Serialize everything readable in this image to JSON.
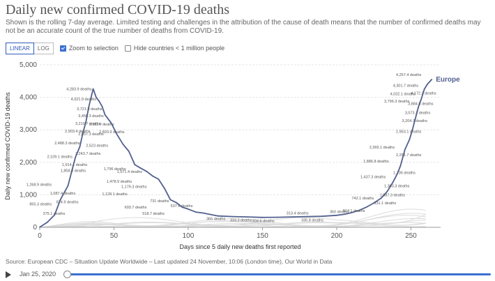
{
  "title": "Daily new confirmed COVID-19 deaths",
  "subtitle": "Shown is the rolling 7-day average. Limited testing and challenges in the attribution of the cause of death means that the number of confirmed deaths may not be an accurate count of the true number of deaths from COVID-19.",
  "controls": {
    "linear": "LINEAR",
    "log": "LOG",
    "zoom": "Zoom to selection",
    "hide": "Hide countries < 1 million people"
  },
  "source": "Source: European CDC – Situation Update Worldwide – Last updated 24 November, 10:06 (London time), Our World in Data",
  "timeline": {
    "date": "Jan 25, 2020"
  },
  "colors": {
    "series": "#52608f",
    "accent": "#3b6fd1",
    "background_lines": "#dcdcdc",
    "grid": "#e6e6e6"
  },
  "chart_data": {
    "type": "line",
    "xlabel": "Days since 5 daily new deaths first reported",
    "ylabel": "Daily new confirmed COVID-19 deaths",
    "xlim": [
      0,
      270
    ],
    "ylim": [
      0,
      5000
    ],
    "xticks": [
      0,
      50,
      100,
      150,
      200,
      250
    ],
    "yticks": [
      0,
      1000,
      2000,
      3000,
      4000,
      5000
    ],
    "ytick_labels": [
      "0",
      "1,000",
      "2,000",
      "3,000",
      "4,000",
      "5,000"
    ],
    "grid": true,
    "series": [
      {
        "name": "Europe",
        "x": [
          0,
          5,
          10,
          14,
          19,
          24,
          27,
          29,
          31,
          33,
          35,
          36,
          38,
          40,
          42,
          44,
          48,
          52,
          56,
          60,
          64,
          68,
          72,
          76,
          80,
          84,
          88,
          92,
          96,
          100,
          105,
          110,
          120,
          130,
          140,
          150,
          160,
          170,
          180,
          190,
          200,
          205,
          210,
          215,
          220,
          225,
          230,
          234,
          238,
          241,
          243,
          246,
          249,
          251,
          253,
          255,
          257,
          259,
          261,
          264
        ],
        "y": [
          5,
          150,
          380,
          860,
          1280,
          2150,
          2480,
          2900,
          3220,
          3700,
          4080,
          4260,
          4000,
          3880,
          3720,
          3460,
          3220,
          2860,
          2560,
          2340,
          1930,
          1820,
          1720,
          1580,
          1480,
          1200,
          850,
          760,
          620,
          560,
          470,
          440,
          350,
          330,
          320,
          305,
          310,
          320,
          330,
          340,
          370,
          400,
          450,
          520,
          620,
          750,
          900,
          1100,
          1400,
          1660,
          1900,
          2400,
          2700,
          3000,
          3350,
          3700,
          3950,
          4250,
          4400,
          4550
        ]
      }
    ],
    "annotations": [
      {
        "text": "4,283.9 deaths",
        "x": 36,
        "y": 4260
      },
      {
        "text": "4,021.9 deaths",
        "x": 39,
        "y": 3950
      },
      {
        "text": "3,721.9 deaths",
        "x": 43,
        "y": 3650
      },
      {
        "text": "3,456.3 deaths",
        "x": 44,
        "y": 3430
      },
      {
        "text": "3,210.7 deaths",
        "x": 42,
        "y": 3200
      },
      {
        "text": "3,111.0 deaths",
        "x": 51,
        "y": 3180
      },
      {
        "text": "2,903.4 deaths",
        "x": 35,
        "y": 2960
      },
      {
        "text": "2,857.3 deaths",
        "x": 44,
        "y": 2880
      },
      {
        "text": "2,820.9 deaths",
        "x": 58,
        "y": 2940
      },
      {
        "text": "2,488.3 deaths",
        "x": 28,
        "y": 2600
      },
      {
        "text": "2,523 deaths",
        "x": 47,
        "y": 2520
      },
      {
        "text": "2,243.7 deaths",
        "x": 42,
        "y": 2270
      },
      {
        "text": "2,109.1 deaths",
        "x": 23,
        "y": 2180
      },
      {
        "text": "1,914.1 deaths",
        "x": 33,
        "y": 1930
      },
      {
        "text": "1,858.8 deaths",
        "x": 32,
        "y": 1750
      },
      {
        "text": "1,796 deaths",
        "x": 59,
        "y": 1800
      },
      {
        "text": "1,571.4 deaths",
        "x": 70,
        "y": 1720
      },
      {
        "text": "1,478.9 deaths",
        "x": 63,
        "y": 1420
      },
      {
        "text": "1,268.9 deaths",
        "x": 9,
        "y": 1320
      },
      {
        "text": "1,179.3 deaths",
        "x": 73,
        "y": 1260
      },
      {
        "text": "1,128.1 deaths",
        "x": 60,
        "y": 1030
      },
      {
        "text": "1,087.4 deaths",
        "x": 25,
        "y": 1050
      },
      {
        "text": "874.9 deaths",
        "x": 27,
        "y": 780
      },
      {
        "text": "855.3 deaths",
        "x": 9,
        "y": 720
      },
      {
        "text": "731 deaths",
        "x": 88,
        "y": 820
      },
      {
        "text": "693.7 deaths",
        "x": 73,
        "y": 620
      },
      {
        "text": "537.6 deaths",
        "x": 104,
        "y": 660
      },
      {
        "text": "518.7 deaths",
        "x": 85,
        "y": 430
      },
      {
        "text": "375.1 deaths",
        "x": 18,
        "y": 430
      },
      {
        "text": "365 deaths",
        "x": 126,
        "y": 270
      },
      {
        "text": "333.3 deaths",
        "x": 144,
        "y": 220
      },
      {
        "text": "304.6 deaths",
        "x": 159,
        "y": 200
      },
      {
        "text": "313.4 deaths",
        "x": 182,
        "y": 440
      },
      {
        "text": "335.8 deaths",
        "x": 192,
        "y": 230
      },
      {
        "text": "360 deaths",
        "x": 209,
        "y": 480
      },
      {
        "text": "614.1 deaths",
        "x": 220,
        "y": 510
      },
      {
        "text": "742.1 deaths",
        "x": 226,
        "y": 900
      },
      {
        "text": "931.1 deaths",
        "x": 241,
        "y": 750
      },
      {
        "text": "1,087.3 deaths",
        "x": 247,
        "y": 1000
      },
      {
        "text": "1,363.3 deaths",
        "x": 250,
        "y": 1280
      },
      {
        "text": "1,437.3 deaths",
        "x": 234,
        "y": 1560
      },
      {
        "text": "1,736 deaths",
        "x": 254,
        "y": 1680
      },
      {
        "text": "1,886.8 deaths",
        "x": 236,
        "y": 2040
      },
      {
        "text": "2,251.7 deaths",
        "x": 258,
        "y": 2230
      },
      {
        "text": "2,369.1 deaths",
        "x": 240,
        "y": 2470
      },
      {
        "text": "2,953.1 deaths",
        "x": 258,
        "y": 2950
      },
      {
        "text": "3,204.7 deaths",
        "x": 262,
        "y": 3280
      },
      {
        "text": "3,573.1 deaths",
        "x": 264,
        "y": 3530
      },
      {
        "text": "3,796.3 deaths",
        "x": 250,
        "y": 3880
      },
      {
        "text": "3,884.5 deaths",
        "x": 266,
        "y": 3810
      },
      {
        "text": "4,032.1 deaths",
        "x": 254,
        "y": 4110
      },
      {
        "text": "4,172.3 deaths",
        "x": 268,
        "y": 4130
      },
      {
        "text": "4,301.7 deaths",
        "x": 256,
        "y": 4370
      },
      {
        "text": "4,257.4 deaths",
        "x": 258,
        "y": 4700
      }
    ]
  }
}
